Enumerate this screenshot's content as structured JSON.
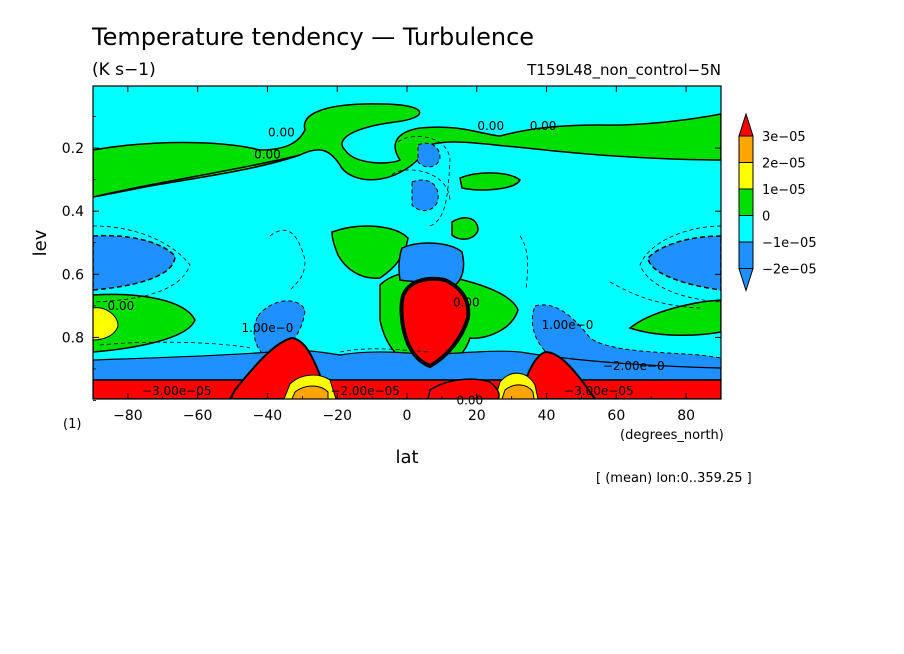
{
  "chart_data": {
    "type": "heatmap",
    "title": "Temperature tendency — Turbulence",
    "units": "(K s−1)",
    "run_label": "T159L48_non_control−5N",
    "xlabel": "lat",
    "x_units": "(degrees_north)",
    "ylabel": "lev",
    "y_units": "(1)",
    "footnote": "[ (mean) lon:0..359.25 ]",
    "xlim": [
      -90,
      90
    ],
    "ylim": [
      0.0,
      1.0
    ],
    "y_inverted": true,
    "x_ticks": [
      -80,
      -60,
      -40,
      -20,
      0,
      20,
      40,
      60,
      80
    ],
    "x_tick_labels": [
      "−80",
      "−60",
      "−40",
      "−20",
      "0",
      "20",
      "40",
      "60",
      "80"
    ],
    "y_ticks": [
      0.2,
      0.4,
      0.6,
      0.8
    ],
    "y_tick_labels": [
      "0.2",
      "0.4",
      "0.6",
      "0.8"
    ],
    "color_levels": [
      {
        "label": "3e−05",
        "color": "#ff0000"
      },
      {
        "label": "2e−05",
        "color": "#ffa500"
      },
      {
        "label": "1e−05",
        "color": "#ffff00"
      },
      {
        "label": "0",
        "color": "#00e000"
      },
      {
        "label": "−1e−05",
        "color": "#00ffff"
      },
      {
        "label": "−2e−05",
        "color": "#1e90ff"
      }
    ],
    "contour_labels": [
      {
        "text": "0.00",
        "lat": -36,
        "lev": 0.15
      },
      {
        "text": "0.00",
        "lat": -40,
        "lev": 0.22
      },
      {
        "text": "0.00",
        "lat": 24,
        "lev": 0.13
      },
      {
        "text": "0.00",
        "lat": 39,
        "lev": 0.13
      },
      {
        "text": "0.00",
        "lat": -82,
        "lev": 0.7
      },
      {
        "text": "0.00",
        "lat": 17,
        "lev": 0.69
      },
      {
        "text": "1.00e−0",
        "lat": -40,
        "lev": 0.77
      },
      {
        "text": "1.00e−0",
        "lat": 46,
        "lev": 0.76
      },
      {
        "text": "−2.00e−0",
        "lat": 65,
        "lev": 0.89
      },
      {
        "text": "−3.00e−05",
        "lat": -66,
        "lev": 0.97
      },
      {
        "text": "−2.00e−05",
        "lat": -12,
        "lev": 0.97
      },
      {
        "text": "−3.00e−05",
        "lat": 55,
        "lev": 0.97
      },
      {
        "text": "0.00",
        "lat": 18,
        "lev": 1.0
      }
    ]
  }
}
